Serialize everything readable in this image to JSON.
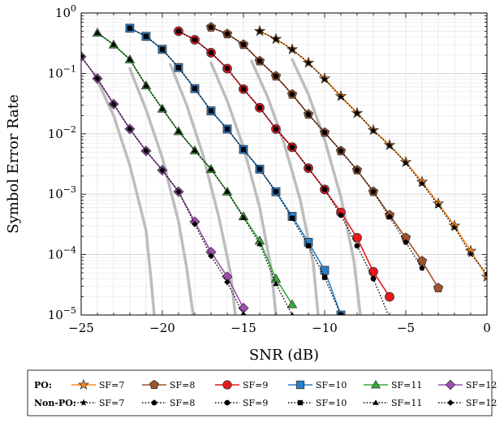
{
  "chart_data": {
    "type": "line",
    "title": "",
    "xlabel": "SNR (dB)",
    "ylabel": "Symbol Error Rate",
    "xlim": [
      -25,
      0
    ],
    "ylim": [
      1e-05,
      1
    ],
    "yscale": "log",
    "grid": true,
    "x_ticks": [
      -25,
      -20,
      -15,
      -10,
      -5,
      0
    ],
    "x_tick_labels": [
      "−25",
      "−20",
      "−15",
      "−10",
      "−5",
      "0"
    ],
    "y_ticks": [
      {
        "value": 1,
        "base": "10",
        "exp": "0"
      },
      {
        "value": 0.1,
        "base": "10",
        "exp": "−1"
      },
      {
        "value": 0.01,
        "base": "10",
        "exp": "−2"
      },
      {
        "value": 0.001,
        "base": "10",
        "exp": "−3"
      },
      {
        "value": 0.0001,
        "base": "10",
        "exp": "−4"
      },
      {
        "value": 1e-05,
        "base": "10",
        "exp": "−5"
      }
    ],
    "legend": {
      "placement": "bottom",
      "group_po": "PO:",
      "group_nonpo": "Non-PO:"
    },
    "po_series": [
      {
        "name": "SF=7",
        "color": "#ff8c1a",
        "marker": "star",
        "x": [
          -14,
          -13,
          -12,
          -11,
          -10,
          -9,
          -8,
          -7,
          -6,
          -5,
          -4,
          -3,
          -2,
          -1,
          0
        ],
        "y": [
          0.5,
          0.37,
          0.25,
          0.15,
          0.082,
          0.042,
          0.022,
          0.0115,
          0.0065,
          0.0034,
          0.0016,
          0.0007,
          0.0003,
          0.000115,
          4.3e-05
        ]
      },
      {
        "name": "SF=8",
        "color": "#a0522d",
        "marker": "pentagon",
        "x": [
          -17,
          -16,
          -15,
          -14,
          -13,
          -12,
          -11,
          -10,
          -9,
          -8,
          -7,
          -6,
          -5,
          -4,
          -3
        ],
        "y": [
          0.58,
          0.45,
          0.3,
          0.16,
          0.09,
          0.045,
          0.021,
          0.0105,
          0.0052,
          0.0025,
          0.0011,
          0.00045,
          0.00019,
          7.8e-05,
          2.8e-05
        ]
      },
      {
        "name": "SF=9",
        "color": "#e8191e",
        "marker": "circle",
        "x": [
          -19,
          -18,
          -17,
          -16,
          -15,
          -14,
          -13,
          -12,
          -11,
          -10,
          -9,
          -8,
          -7,
          -6
        ],
        "y": [
          0.5,
          0.36,
          0.22,
          0.12,
          0.055,
          0.027,
          0.012,
          0.006,
          0.0027,
          0.0012,
          0.0005,
          0.00019,
          5.2e-05,
          2e-05
        ]
      },
      {
        "name": "SF=10",
        "color": "#2a7fc9",
        "marker": "square",
        "x": [
          -22,
          -21,
          -20,
          -19,
          -18,
          -17,
          -16,
          -15,
          -14,
          -13,
          -12,
          -11,
          -10,
          -9
        ],
        "y": [
          0.56,
          0.41,
          0.25,
          0.125,
          0.056,
          0.024,
          0.012,
          0.0055,
          0.0026,
          0.0011,
          0.00043,
          0.00016,
          5.5e-05,
          1e-05
        ]
      },
      {
        "name": "SF=11",
        "color": "#3aa83a",
        "marker": "triangle",
        "x": [
          -24,
          -23,
          -22,
          -21,
          -20,
          -19,
          -18,
          -17,
          -16,
          -15,
          -14,
          -13,
          -12
        ],
        "y": [
          0.47,
          0.3,
          0.17,
          0.063,
          0.026,
          0.011,
          0.0053,
          0.0026,
          0.0011,
          0.00043,
          0.00017,
          4e-05,
          1.5e-05
        ]
      },
      {
        "name": "SF=12",
        "color": "#9d4fb0",
        "marker": "diamond",
        "x": [
          -25,
          -24,
          -23,
          -22,
          -21,
          -20,
          -19,
          -18,
          -17,
          -16,
          -15
        ],
        "y": [
          0.19,
          0.082,
          0.031,
          0.012,
          0.0052,
          0.0025,
          0.0011,
          0.00035,
          0.00011,
          4.3e-05,
          1.3e-05
        ]
      }
    ],
    "nonpo_series": [
      {
        "name": "SF=7",
        "marker": "star",
        "x": [
          -14,
          -13,
          -12,
          -11,
          -10,
          -9,
          -8,
          -7,
          -6,
          -5,
          -4,
          -3,
          -2,
          -1,
          0
        ],
        "y": [
          0.5,
          0.37,
          0.25,
          0.15,
          0.08,
          0.041,
          0.022,
          0.0113,
          0.0064,
          0.0033,
          0.0015,
          0.00066,
          0.00028,
          0.000102,
          4.8e-05
        ]
      },
      {
        "name": "SF=8",
        "marker": "pentagon",
        "x": [
          -17,
          -16,
          -15,
          -14,
          -13,
          -12,
          -11,
          -10,
          -9,
          -8,
          -7,
          -6,
          -5,
          -4
        ],
        "y": [
          0.58,
          0.45,
          0.3,
          0.16,
          0.09,
          0.045,
          0.021,
          0.0105,
          0.0052,
          0.0025,
          0.0011,
          0.00042,
          0.00016,
          6e-05
        ]
      },
      {
        "name": "SF=9",
        "marker": "circle",
        "x": [
          -19,
          -18,
          -17,
          -16,
          -15,
          -14,
          -13,
          -12,
          -11,
          -10,
          -9,
          -8,
          -7,
          -6
        ],
        "y": [
          0.5,
          0.36,
          0.22,
          0.12,
          0.055,
          0.027,
          0.012,
          0.006,
          0.0027,
          0.0012,
          0.00045,
          0.00014,
          4e-05,
          9e-06
        ]
      },
      {
        "name": "SF=10",
        "marker": "square",
        "x": [
          -22,
          -21,
          -20,
          -19,
          -18,
          -17,
          -16,
          -15,
          -14,
          -13,
          -12,
          -11,
          -10,
          -9
        ],
        "y": [
          0.56,
          0.41,
          0.25,
          0.125,
          0.056,
          0.024,
          0.012,
          0.0055,
          0.0026,
          0.0011,
          0.0004,
          0.00014,
          4.2e-05,
          1e-05
        ]
      },
      {
        "name": "SF=11",
        "marker": "triangle",
        "x": [
          -24,
          -23,
          -22,
          -21,
          -20,
          -19,
          -18,
          -17,
          -16,
          -15,
          -14,
          -13,
          -12
        ],
        "y": [
          0.47,
          0.3,
          0.17,
          0.063,
          0.026,
          0.011,
          0.0053,
          0.0026,
          0.0011,
          0.00041,
          0.00015,
          3.3e-05,
          1e-05
        ]
      },
      {
        "name": "SF=12",
        "marker": "diamond",
        "x": [
          -25,
          -24,
          -23,
          -22,
          -21,
          -20,
          -19,
          -18,
          -17,
          -16,
          -15
        ],
        "y": [
          0.19,
          0.082,
          0.031,
          0.012,
          0.0052,
          0.0025,
          0.0011,
          0.00032,
          9.5e-05,
          3.5e-05,
          1e-05
        ]
      }
    ],
    "gray_curves": [
      {
        "x": [
          -24.2,
          -23,
          -22,
          -21,
          -20.7,
          -20.5
        ],
        "y": [
          0.1,
          0.02,
          0.003,
          0.00025,
          4e-05,
          1e-05
        ]
      },
      {
        "x": [
          -22.0,
          -21,
          -20,
          -19,
          -18.5,
          -18.1
        ],
        "y": [
          0.12,
          0.025,
          0.004,
          0.00035,
          6e-05,
          1e-05
        ]
      },
      {
        "x": [
          -19.5,
          -18.5,
          -17.5,
          -16.5,
          -15.8,
          -15.5
        ],
        "y": [
          0.14,
          0.03,
          0.0045,
          0.0004,
          5e-05,
          1e-05
        ]
      },
      {
        "x": [
          -17,
          -16,
          -15,
          -14,
          -13.3,
          -13
        ],
        "y": [
          0.15,
          0.035,
          0.006,
          0.0006,
          6e-05,
          1e-05
        ]
      },
      {
        "x": [
          -14.5,
          -13.5,
          -12.5,
          -11.5,
          -10.7,
          -10.4
        ],
        "y": [
          0.16,
          0.04,
          0.007,
          0.0008,
          7e-05,
          1e-05
        ]
      },
      {
        "x": [
          -12,
          -11,
          -10,
          -9,
          -8.2,
          -7.8
        ],
        "y": [
          0.17,
          0.045,
          0.008,
          0.0009,
          8e-05,
          1e-05
        ]
      }
    ]
  }
}
